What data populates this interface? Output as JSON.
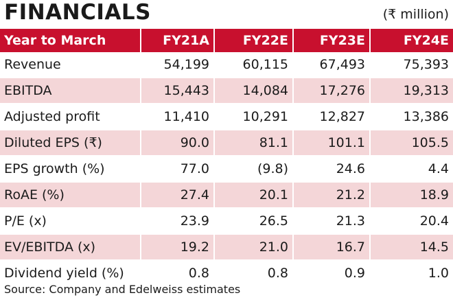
{
  "header": {
    "title": "FINANCIALS",
    "unit": "(₹ million)"
  },
  "table": {
    "columns": [
      "Year to March",
      "FY21A",
      "FY22E",
      "FY23E",
      "FY24E"
    ],
    "rows": [
      {
        "label": "Revenue",
        "values": [
          "54,199",
          "60,115",
          "67,493",
          "75,393"
        ]
      },
      {
        "label": "EBITDA",
        "values": [
          "15,443",
          "14,084",
          "17,276",
          "19,313"
        ]
      },
      {
        "label": "Adjusted profit",
        "values": [
          "11,410",
          "10,291",
          "12,827",
          "13,386"
        ]
      },
      {
        "label": "Diluted EPS (₹)",
        "values": [
          "90.0",
          "81.1",
          "101.1",
          "105.5"
        ]
      },
      {
        "label": "EPS growth (%)",
        "values": [
          "77.0",
          "(9.8)",
          "24.6",
          "4.4"
        ]
      },
      {
        "label": "RoAE (%)",
        "values": [
          "27.4",
          "20.1",
          "21.2",
          "18.9"
        ]
      },
      {
        "label": "P/E (x)",
        "values": [
          "23.9",
          "26.5",
          "21.3",
          "20.4"
        ]
      },
      {
        "label": "EV/EBITDA (x)",
        "values": [
          "19.2",
          "21.0",
          "16.7",
          "14.5"
        ]
      },
      {
        "label": "Dividend yield (%)",
        "values": [
          "0.8",
          "0.8",
          "0.9",
          "1.0"
        ]
      }
    ]
  },
  "footer": {
    "source": "Source: Company and Edelweiss estimates"
  },
  "colors": {
    "header_bg": "#c8102e",
    "shade_bg": "#f4d6d8"
  }
}
